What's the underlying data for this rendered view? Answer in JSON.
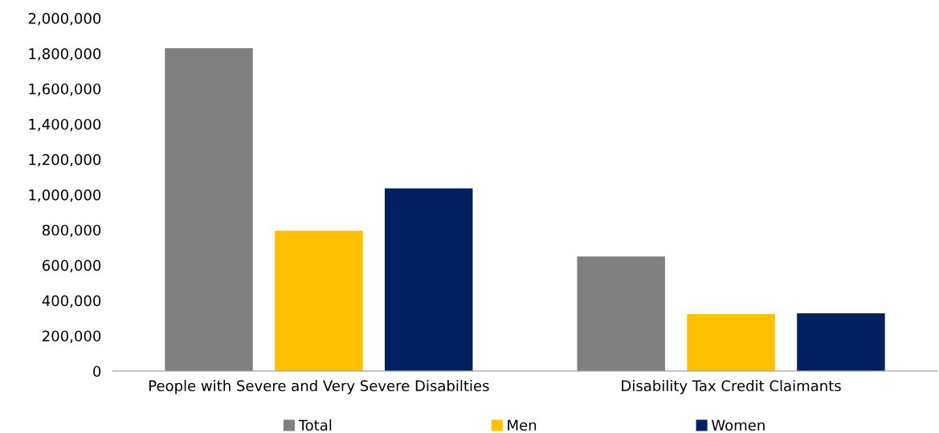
{
  "chart_data": {
    "type": "bar",
    "categories": [
      "People with Severe and Very Severe Disabilties",
      "Disability Tax Credit Claimants"
    ],
    "series": [
      {
        "name": "Total",
        "color": "#808080",
        "values": [
          1830000,
          650000
        ]
      },
      {
        "name": "Men",
        "color": "#ffc000",
        "values": [
          795000,
          323000
        ]
      },
      {
        "name": "Women",
        "color": "#002060",
        "values": [
          1035000,
          328000
        ]
      }
    ],
    "ylim": [
      0,
      2000000
    ],
    "yticks": [
      {
        "value": 0,
        "label": "0"
      },
      {
        "value": 200000,
        "label": "200,000"
      },
      {
        "value": 400000,
        "label": "400,000"
      },
      {
        "value": 600000,
        "label": "600,000"
      },
      {
        "value": 800000,
        "label": "800,000"
      },
      {
        "value": 1000000,
        "label": "1,000,000"
      },
      {
        "value": 1200000,
        "label": "1,200,000"
      },
      {
        "value": 1400000,
        "label": "1,400,000"
      },
      {
        "value": 1600000,
        "label": "1,600,000"
      },
      {
        "value": 1800000,
        "label": "1,800,000"
      },
      {
        "value": 2000000,
        "label": "2,000,000"
      }
    ],
    "grid": false,
    "legend": "bottom"
  }
}
